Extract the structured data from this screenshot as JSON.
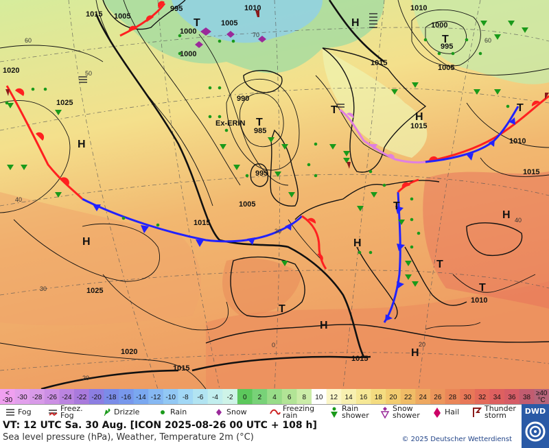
{
  "map": {
    "pressure_labels": [
      {
        "text": "1015"
      },
      {
        "text": "1005"
      },
      {
        "text": "995"
      },
      {
        "text": "1010"
      },
      {
        "text": "1000"
      },
      {
        "text": "1005"
      },
      {
        "text": "1000"
      },
      {
        "text": "1010"
      },
      {
        "text": "1000"
      },
      {
        "text": "995"
      },
      {
        "text": "1005"
      },
      {
        "text": "1015"
      },
      {
        "text": "1020"
      },
      {
        "text": "1025"
      },
      {
        "text": "990"
      },
      {
        "text": "985"
      },
      {
        "text": "995"
      },
      {
        "text": "1005"
      },
      {
        "text": "1015"
      },
      {
        "text": "1015"
      },
      {
        "text": "1010"
      },
      {
        "text": "1015"
      },
      {
        "text": "1025"
      },
      {
        "text": "1010"
      },
      {
        "text": "1020"
      },
      {
        "text": "1015"
      },
      {
        "text": "1015"
      }
    ],
    "centers": [
      {
        "text": "T"
      },
      {
        "text": "T"
      },
      {
        "text": "T"
      },
      {
        "text": "H"
      },
      {
        "text": "H"
      },
      {
        "text": "H"
      },
      {
        "text": "H"
      },
      {
        "text": "H"
      },
      {
        "text": "T"
      },
      {
        "text": "H"
      },
      {
        "text": "T"
      },
      {
        "text": "T"
      },
      {
        "text": "T"
      },
      {
        "text": "H"
      },
      {
        "text": "T"
      },
      {
        "text": "H"
      },
      {
        "text": "T"
      }
    ],
    "storm_name": "Ex-ERIN",
    "grid_labels": [
      "60",
      "50",
      "40",
      "30",
      "20",
      "70",
      "60",
      "40",
      "30",
      "20",
      "0"
    ]
  },
  "scale": {
    "steps": [
      {
        "label": "<\n-30",
        "color": "#f0a0f0"
      },
      {
        "label": "-30",
        "color": "#e2a0ec"
      },
      {
        "label": "-28",
        "color": "#d89ae8"
      },
      {
        "label": "-26",
        "color": "#cc8fe4"
      },
      {
        "label": "-24",
        "color": "#bb84e0"
      },
      {
        "label": "-22",
        "color": "#a97adc"
      },
      {
        "label": "-20",
        "color": "#8c7ee2"
      },
      {
        "label": "-18",
        "color": "#7a8ce8"
      },
      {
        "label": "-16",
        "color": "#7898ec"
      },
      {
        "label": "-14",
        "color": "#7aa8f0"
      },
      {
        "label": "-12",
        "color": "#86b8f2"
      },
      {
        "label": "-10",
        "color": "#92c8f4"
      },
      {
        "label": "-8",
        "color": "#a2d8f6"
      },
      {
        "label": "-6",
        "color": "#b2e4f2"
      },
      {
        "label": "-4",
        "color": "#c2eeee"
      },
      {
        "label": "-2",
        "color": "#cef4e8"
      },
      {
        "label": "0",
        "color": "#5cc85c"
      },
      {
        "label": "2",
        "color": "#78d278"
      },
      {
        "label": "4",
        "color": "#98dc88"
      },
      {
        "label": "6",
        "color": "#b2e496"
      },
      {
        "label": "8",
        "color": "#cbeca8"
      },
      {
        "label": "10",
        "color": "#ffffff"
      },
      {
        "label": "12",
        "color": "#fbf6c8"
      },
      {
        "label": "14",
        "color": "#f8f0b0"
      },
      {
        "label": "16",
        "color": "#f6e896"
      },
      {
        "label": "18",
        "color": "#f4dc80"
      },
      {
        "label": "20",
        "color": "#f2cc70"
      },
      {
        "label": "22",
        "color": "#f0bc66"
      },
      {
        "label": "24",
        "color": "#eea860"
      },
      {
        "label": "26",
        "color": "#ec965c"
      },
      {
        "label": "28",
        "color": "#ea8658"
      },
      {
        "label": "30",
        "color": "#e87858"
      },
      {
        "label": "32",
        "color": "#e46a5a"
      },
      {
        "label": "34",
        "color": "#de6060"
      },
      {
        "label": "36",
        "color": "#d65c66"
      },
      {
        "label": "38",
        "color": "#c25c70"
      },
      {
        "label": "≥40\n°C",
        "color": "#b6647a"
      }
    ]
  },
  "legend": {
    "items": [
      {
        "label": "Fog",
        "icon": "fog-icon"
      },
      {
        "label": "Freez.\nFog",
        "icon": "freezing-fog-icon"
      },
      {
        "label": "Drizzle",
        "icon": "drizzle-icon"
      },
      {
        "label": "Rain",
        "icon": "rain-icon"
      },
      {
        "label": "Snow",
        "icon": "snow-icon"
      },
      {
        "label": "Freezing\nrain",
        "icon": "freezing-rain-icon"
      },
      {
        "label": "Rain\nshower",
        "icon": "rain-shower-icon"
      },
      {
        "label": "Snow\nshower",
        "icon": "snow-shower-icon"
      },
      {
        "label": "Hail",
        "icon": "hail-icon"
      },
      {
        "label": "Thunder\nstorm",
        "icon": "thunderstorm-icon"
      }
    ]
  },
  "footer": {
    "vt": "VT: 12 UTC Sa.   30 Aug. [ICON 2025-08-26  00 UTC + 108 h]",
    "params": "Sea level pressure (hPa), Weather, Temperature 2m (°C)",
    "copyright": "© 2025 Deutscher Wetterdienst"
  },
  "logo": {
    "text": "DWD"
  },
  "colors": {
    "warm_front": "#ff2020",
    "cold_front": "#2222ff",
    "occlusion": "#e080e0"
  }
}
